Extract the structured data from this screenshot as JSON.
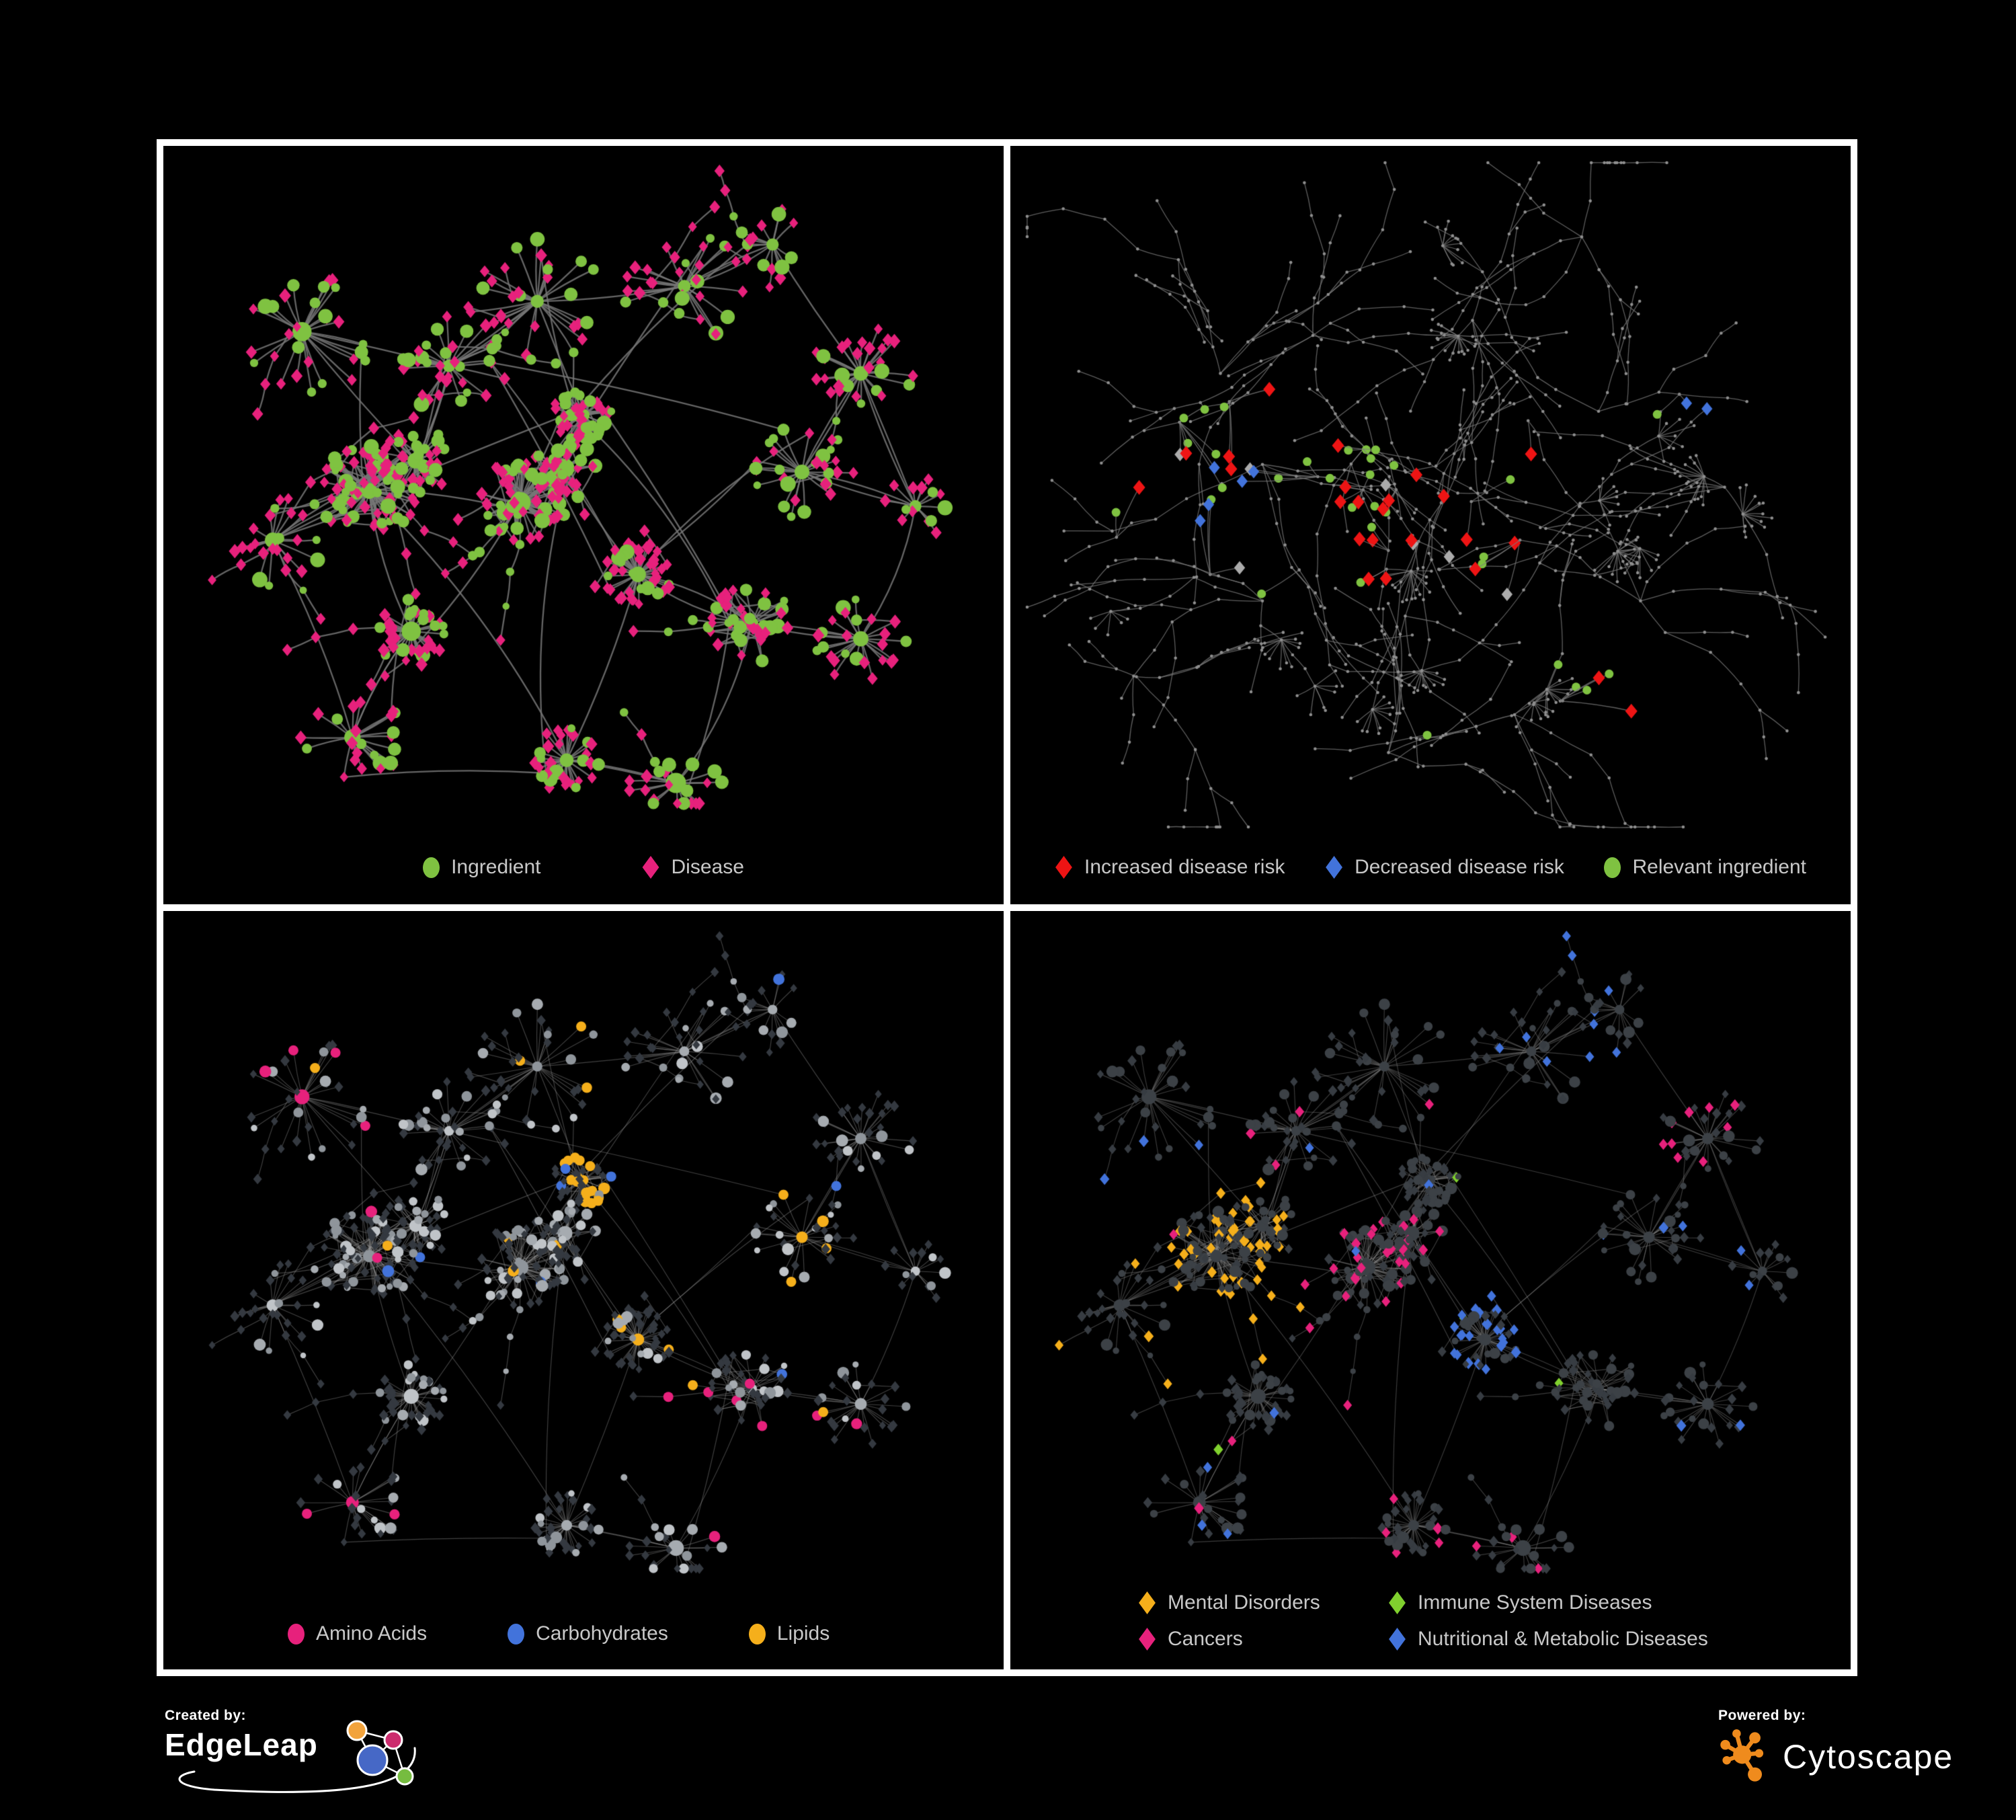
{
  "panels": [
    {
      "id": "ingredient-disease",
      "legend": [
        {
          "label": "Ingredient",
          "shape": "circle",
          "color": "#7FC241"
        },
        {
          "label": "Disease",
          "shape": "diamond",
          "color": "#E7217C"
        }
      ],
      "network": {
        "style": "communities",
        "variant": "plain",
        "seed": 21,
        "edge_color": "#777777",
        "colors": {
          "ingredient": "#7FC241",
          "disease": "#E7217C"
        }
      }
    },
    {
      "id": "disease-risk",
      "legend": [
        {
          "label": "Increased disease risk",
          "shape": "diamond",
          "color": "#EE1414"
        },
        {
          "label": "Decreased disease risk",
          "shape": "diamond",
          "color": "#4273DB"
        },
        {
          "label": "Relevant ingredient",
          "shape": "circle",
          "color": "#7FC241"
        }
      ],
      "network": {
        "style": "dendritic",
        "seed": 13,
        "edge_color": "#7C7C7C",
        "dot_color": "#8F8F8F",
        "colors": {
          "increased": "#EE1414",
          "decreased": "#4273DB",
          "neutral": "#ABABAB",
          "ingredient": "#7FC241"
        }
      }
    },
    {
      "id": "ingredient-classes",
      "legend": [
        {
          "label": "Amino Acids",
          "shape": "circle",
          "color": "#E7217C"
        },
        {
          "label": "Carbohydrates",
          "shape": "circle",
          "color": "#4273DB"
        },
        {
          "label": "Lipids",
          "shape": "circle",
          "color": "#F5AF1B"
        }
      ],
      "network": {
        "style": "communities",
        "variant": "ingredients",
        "seed": 21,
        "edge_color": "#9A9A9A",
        "base_diamond": "#343940",
        "colors": {
          "amino": "#E7217C",
          "carb": "#4273DB",
          "lipid": "#F5AF1B"
        }
      }
    },
    {
      "id": "disease-classes",
      "legend": [
        {
          "label": "Mental Disorders",
          "shape": "diamond",
          "color": "#F5AF1B"
        },
        {
          "label": "Immune System Diseases",
          "shape": "diamond",
          "color": "#80D02E"
        },
        {
          "label": "Cancers",
          "shape": "diamond",
          "color": "#E7217C"
        },
        {
          "label": "Nutritional & Metabolic Diseases",
          "shape": "diamond",
          "color": "#4273DB"
        }
      ],
      "network": {
        "style": "communities",
        "variant": "diseases",
        "seed": 21,
        "edge_color": "#8F8F8F",
        "base_circle": "#3C4146",
        "base_diamond": "#373C42",
        "colors": {
          "mental": "#F5AF1B",
          "immune": "#80D02E",
          "cancer": "#E7217C",
          "nutritional": "#4273DB"
        }
      }
    }
  ],
  "footer": {
    "created_by": {
      "label": "Created by:",
      "brand": "EdgeLeap",
      "logo_colors": {
        "orange": "#F2A33C",
        "magenta": "#CC2C6E",
        "blue": "#4668C6",
        "green": "#76BC40"
      }
    },
    "powered_by": {
      "label": "Powered by:",
      "brand": "Cytoscape",
      "logo_color": "#EF8B1D"
    }
  }
}
